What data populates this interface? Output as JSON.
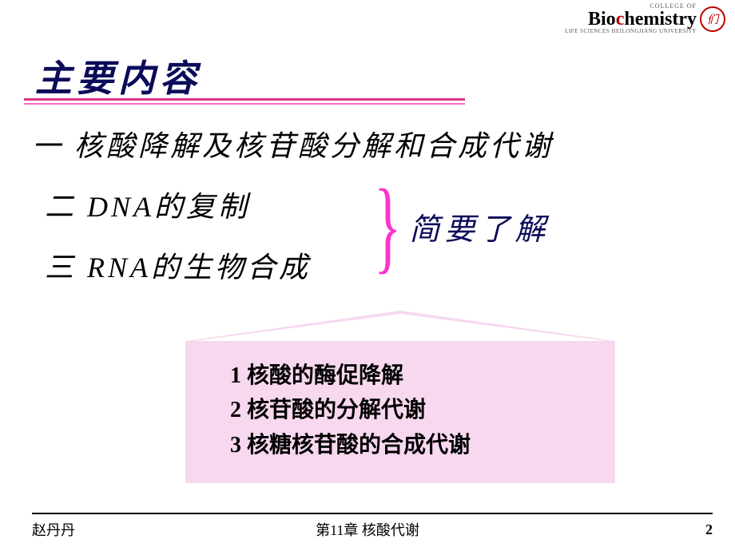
{
  "logo": {
    "college": "COLLEGE OF",
    "main_pre": "Bio",
    "main_c": "c",
    "main_post": "hemistry",
    "sub": "LIFE SCIENCES  HEILONGJIANG UNIVERSITY",
    "seal_text": "们"
  },
  "title": "主要内容",
  "outline": {
    "item1": "一 核酸降解及核苷酸分解和合成代谢",
    "item2": "二 DNA的复制",
    "item3": "三 RNA的生物合成"
  },
  "brace_label": "简要了解",
  "subsections": {
    "s1": "1 核酸的酶促降解",
    "s2": "2 核苷酸的分解代谢",
    "s3": "3 核糖核苷酸的合成代谢"
  },
  "footer": {
    "author": "赵丹丹",
    "chapter": "第11章 核酸代谢",
    "page": "2"
  },
  "style": {
    "title_color": "#0b0b5a",
    "rule_color1": "#d63384",
    "rule_color2": "#ff66cc",
    "brace_color": "#ff33cc",
    "pink_bg": "#f7d8ef",
    "body_fontsize": 36,
    "box_fontsize": 28,
    "footer_fontsize": 18
  }
}
